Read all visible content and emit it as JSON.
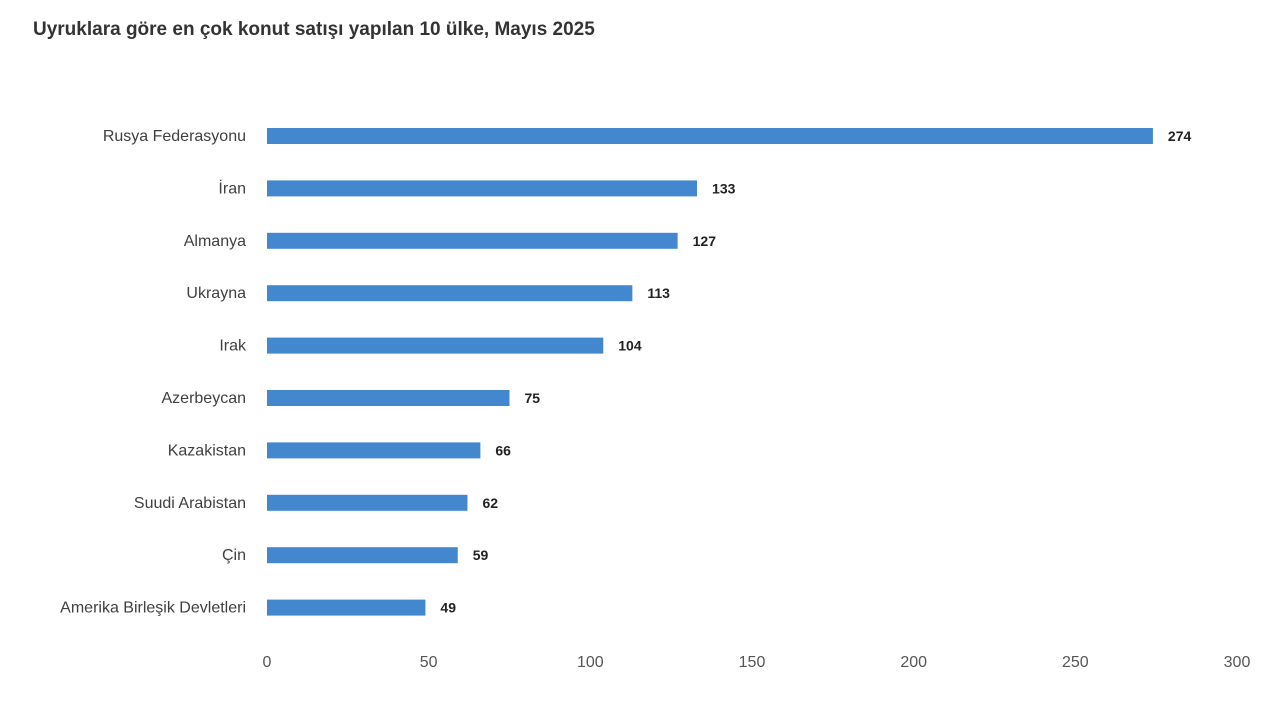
{
  "title": "Uyruklara göre en çok konut satışı yapılan 10 ülke, Mayıs 2025",
  "chart_data": {
    "type": "bar",
    "orientation": "horizontal",
    "title": "Uyruklara göre en çok konut satışı yapılan 10 ülke, Mayıs 2025",
    "xlabel": "",
    "ylabel": "",
    "categories": [
      "Rusya Federasyonu",
      "İran",
      "Almanya",
      "Ukrayna",
      "Irak",
      "Azerbeycan",
      "Kazakistan",
      "Suudi Arabistan",
      "Çin",
      "Amerika Birleşik Devletleri"
    ],
    "values": [
      274,
      133,
      127,
      113,
      104,
      75,
      66,
      62,
      59,
      49
    ],
    "xlim": [
      0,
      300
    ],
    "xticks": [
      0,
      50,
      100,
      150,
      200,
      250,
      300
    ],
    "grid": false,
    "legend": false,
    "bar_color": "#4388cf"
  }
}
